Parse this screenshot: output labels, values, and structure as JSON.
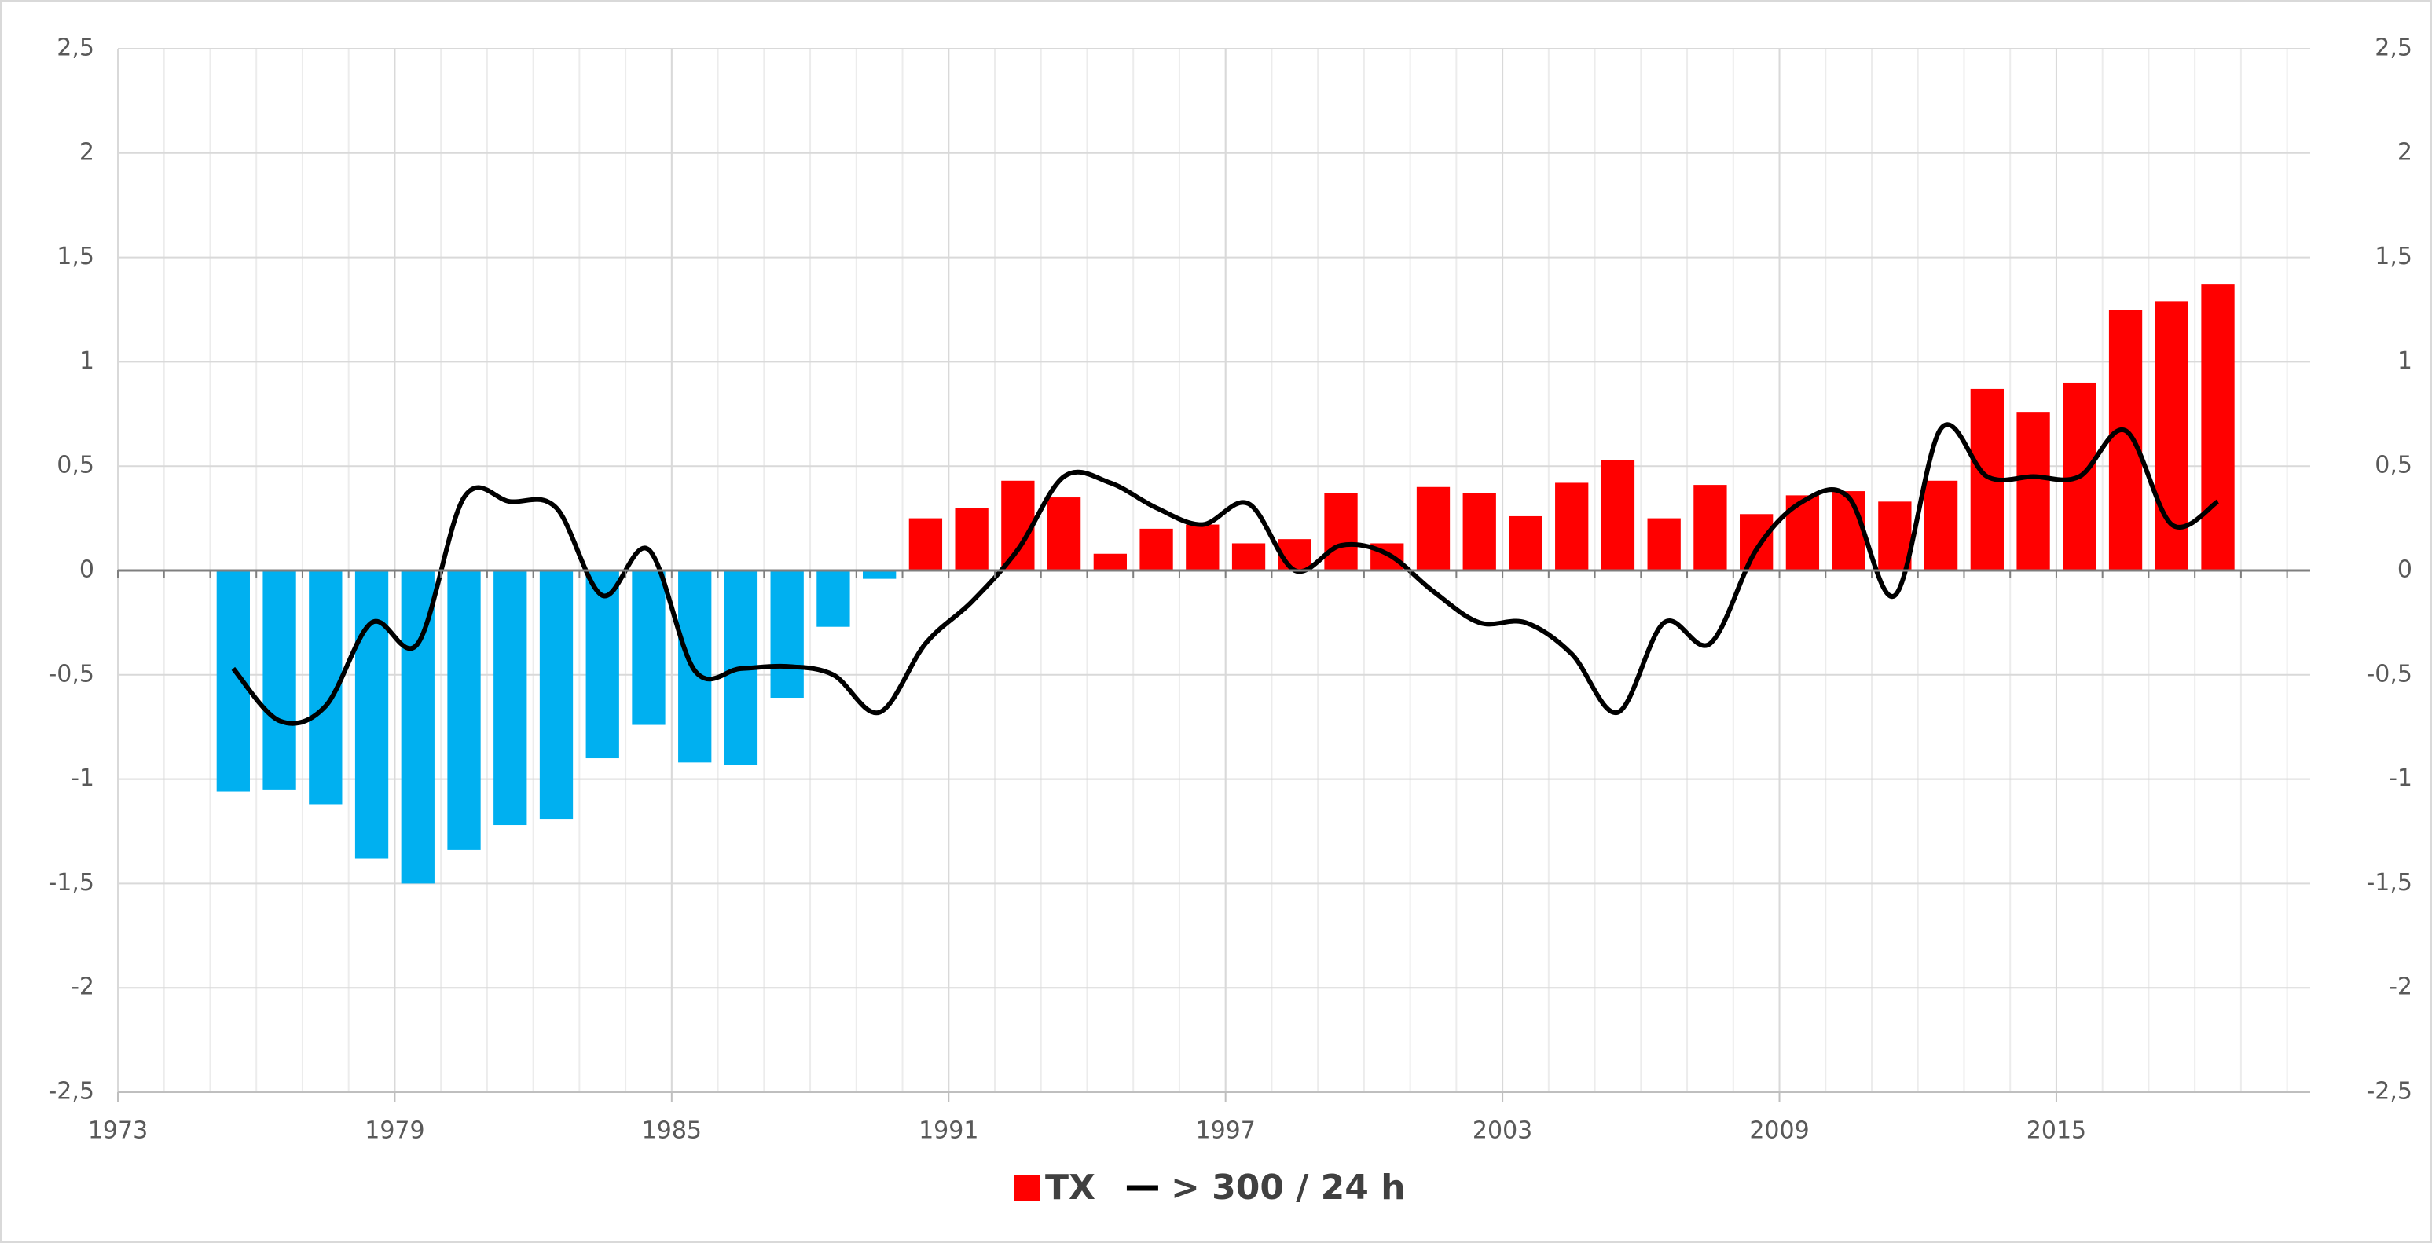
{
  "chart_data": {
    "type": "bar",
    "x": [
      1975,
      1976,
      1977,
      1978,
      1979,
      1980,
      1981,
      1982,
      1983,
      1984,
      1985,
      1986,
      1987,
      1988,
      1989,
      1990,
      1991,
      1992,
      1993,
      1994,
      1995,
      1996,
      1997,
      1998,
      1999,
      2000,
      2001,
      2002,
      2003,
      2004,
      2005,
      2006,
      2007,
      2008,
      2009,
      2010,
      2011,
      2012,
      2013,
      2014,
      2015,
      2016,
      2017,
      2018
    ],
    "series": [
      {
        "name": "TX",
        "type": "bar",
        "color": "#ff0000",
        "negative_color": "#00b0f0",
        "values": [
          -1.06,
          -1.05,
          -1.12,
          -1.38,
          -1.5,
          -1.34,
          -1.22,
          -1.19,
          -0.9,
          -0.74,
          -0.92,
          -0.93,
          -0.61,
          -0.27,
          -0.04,
          0.25,
          0.3,
          0.43,
          0.35,
          0.08,
          0.2,
          0.22,
          0.13,
          0.15,
          0.37,
          0.13,
          0.4,
          0.37,
          0.26,
          0.42,
          0.53,
          0.25,
          0.41,
          0.27,
          0.36,
          0.38,
          0.33,
          0.43,
          0.87,
          0.76,
          0.9,
          1.25,
          1.29,
          1.37
        ]
      },
      {
        "name": "> 300 / 24 h",
        "type": "line",
        "color": "#000000",
        "values": [
          -0.47,
          -0.72,
          -0.65,
          -0.25,
          -0.35,
          0.35,
          0.33,
          0.3,
          -0.12,
          0.1,
          -0.48,
          -0.47,
          -0.46,
          -0.5,
          -0.68,
          -0.35,
          -0.15,
          0.1,
          0.45,
          0.42,
          0.3,
          0.22,
          0.32,
          0.0,
          0.12,
          0.08,
          -0.1,
          -0.25,
          -0.25,
          -0.4,
          -0.68,
          -0.25,
          -0.35,
          0.1,
          0.33,
          0.35,
          -0.12,
          0.68,
          0.45,
          0.45,
          0.45,
          0.67,
          0.22,
          0.33
        ]
      }
    ],
    "xlim": [
      1973,
      2020.5
    ],
    "xticks": [
      1973,
      1979,
      1985,
      1991,
      1997,
      2003,
      2009,
      2015
    ],
    "ylim": [
      -2.5,
      2.5
    ],
    "yticks": [
      {
        "value": -2.5,
        "label": "-2,5"
      },
      -2,
      {
        "value": -1.5,
        "label": "-1,5"
      },
      -1,
      {
        "value": -0.5,
        "label": "-0,5"
      },
      0,
      {
        "value": 0.5,
        "label": "0,5"
      },
      1,
      {
        "value": 1.5,
        "label": "1,5"
      },
      2,
      {
        "value": 2.5,
        "label": "2,5"
      }
    ],
    "grid": true,
    "legend": "bottom"
  }
}
